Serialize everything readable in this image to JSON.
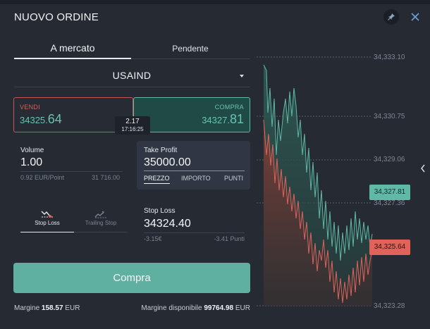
{
  "header": {
    "title": "NUOVO ORDINE",
    "pin_icon": "pin-icon",
    "close_icon": "close-icon"
  },
  "tabs": {
    "market": "A mercato",
    "pending": "Pendente"
  },
  "instrument": {
    "name": "USAIND"
  },
  "quote": {
    "sell_label": "VENDI",
    "sell_price_main": "34325.",
    "sell_price_frac": "64",
    "buy_label": "COMPRA",
    "buy_price_main": "34327.",
    "buy_price_frac": "81",
    "spread": "2.17",
    "time": "17:16:25"
  },
  "volume": {
    "label": "Volume",
    "value": "1.00",
    "point_value": "0.92 EUR/Point",
    "amount": "31 716.00"
  },
  "take_profit": {
    "label": "Take Profit",
    "value": "35000.00",
    "tabs": [
      "PREZZO",
      "IMPORTO",
      "PUNTI"
    ]
  },
  "stop_modes": {
    "loss": "Stop Loss",
    "trailing": "Trailing Stop"
  },
  "stop_loss": {
    "label": "Stop Loss",
    "value": "34324.40",
    "amount": "-3.15€",
    "points": "-3.41 Punti"
  },
  "submit": {
    "label": "Compra"
  },
  "margin": {
    "label": "Margine",
    "value": "158.57",
    "currency": "EUR",
    "available_label": "Margine disponibile",
    "available_value": "99764.98"
  },
  "chart": {
    "ticks": [
      "34,333.10",
      "34,330.75",
      "34,329.06",
      "34,327.36",
      "34,323.28"
    ],
    "ask_tag": "34,327.81",
    "bid_tag": "34,325.64",
    "colors": {
      "ask": "#5fb9a6",
      "bid": "#e0625a"
    }
  }
}
